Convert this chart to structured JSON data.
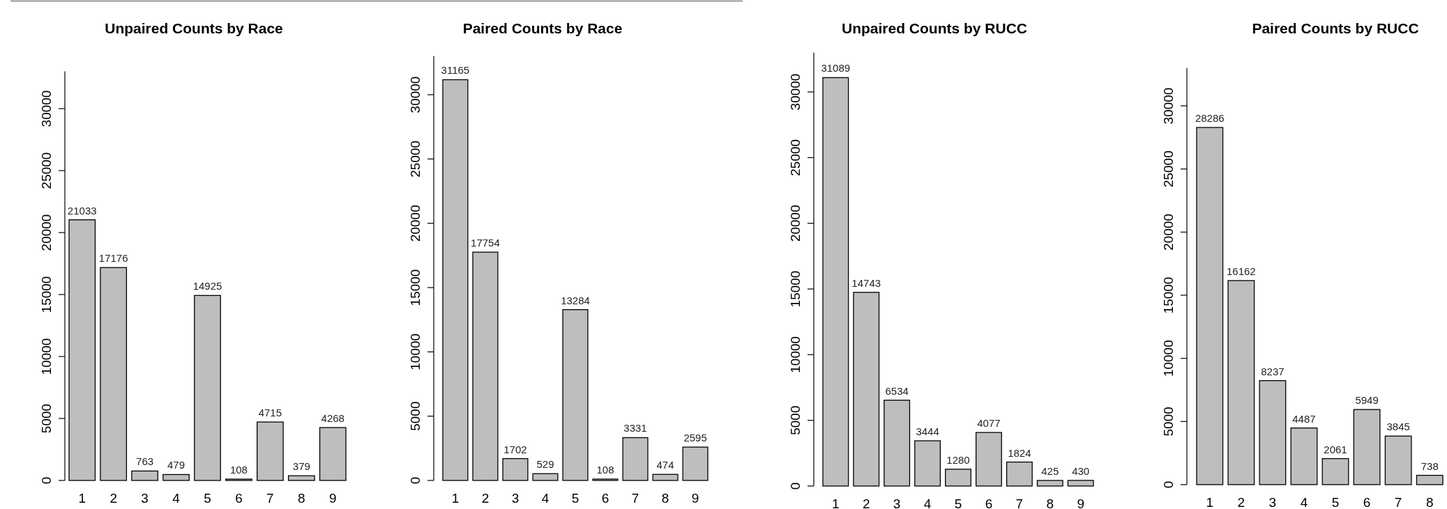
{
  "chart_data": [
    {
      "type": "bar",
      "title": "Unpaired Counts by Race",
      "categories": [
        "1",
        "2",
        "3",
        "4",
        "5",
        "6",
        "7",
        "8",
        "9"
      ],
      "values": [
        21033,
        17176,
        763,
        479,
        14925,
        108,
        4715,
        379,
        4268
      ],
      "color": "#bebebe",
      "ylim": [
        0,
        33000
      ],
      "yticks": [
        0,
        5000,
        10000,
        15000,
        20000,
        25000,
        30000
      ],
      "data_labels": true
    },
    {
      "type": "bar",
      "title": "Paired Counts by Race",
      "categories": [
        "1",
        "2",
        "3",
        "4",
        "5",
        "6",
        "7",
        "8",
        "9"
      ],
      "values": [
        31165,
        17754,
        1702,
        529,
        13284,
        108,
        3331,
        474,
        2595
      ],
      "color": "#bebebe",
      "ylim": [
        0,
        33000
      ],
      "yticks": [
        0,
        5000,
        10000,
        15000,
        20000,
        25000,
        30000
      ],
      "data_labels": true
    },
    {
      "type": "bar",
      "title": "Unpaired Counts by RUCC",
      "categories": [
        "1",
        "2",
        "3",
        "4",
        "5",
        "6",
        "7",
        "8",
        "9"
      ],
      "values": [
        31089,
        14743,
        6534,
        3444,
        1280,
        4077,
        1824,
        425,
        430
      ],
      "color": "#bebebe",
      "ylim": [
        0,
        33000
      ],
      "yticks": [
        0,
        5000,
        10000,
        15000,
        20000,
        25000,
        30000
      ],
      "data_labels": true
    },
    {
      "type": "bar",
      "title": "Paired Counts by RUCC",
      "categories": [
        "1",
        "2",
        "3",
        "4",
        "5",
        "6",
        "7",
        "8"
      ],
      "values": [
        28286,
        16162,
        8237,
        4487,
        2061,
        5949,
        3845,
        738
      ],
      "color": "#bebebe",
      "ylim": [
        0,
        33000
      ],
      "yticks": [
        0,
        5000,
        10000,
        15000,
        20000,
        25000,
        30000
      ],
      "data_labels": true
    }
  ]
}
